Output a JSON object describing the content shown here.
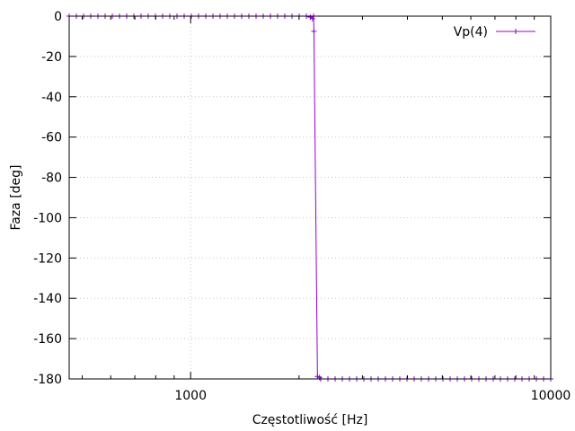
{
  "chart_data": {
    "type": "line",
    "xlabel": "Częstotliwość [Hz]",
    "ylabel": "Faza [deg]",
    "xscale": "log",
    "xlim": [
      460,
      10000
    ],
    "ylim": [
      -180,
      0
    ],
    "grid": true,
    "legend_position": "top-right",
    "x_ticks": [
      1000,
      10000
    ],
    "x_tick_labels": [
      "1000",
      "10000"
    ],
    "y_ticks": [
      0,
      -20,
      -40,
      -60,
      -80,
      -100,
      -120,
      -140,
      -160,
      -180
    ],
    "y_tick_labels": [
      "0",
      "-20",
      "-40",
      "-60",
      "-80",
      "-100",
      "-120",
      "-140",
      "-160",
      "-180"
    ],
    "series": [
      {
        "name": "Vp(4)",
        "color": "#9400d3",
        "x_range": [
          460,
          10000
        ],
        "points_per_decade": 50,
        "transition_hz": 2230,
        "low_value": 0,
        "high_value": -180,
        "extra_points": [
          [
            2150,
            -0.5
          ],
          [
            2180,
            -1.2
          ],
          [
            2200,
            -7.5
          ],
          [
            2250,
            -178.8
          ],
          [
            2280,
            -179.3
          ]
        ]
      }
    ]
  }
}
